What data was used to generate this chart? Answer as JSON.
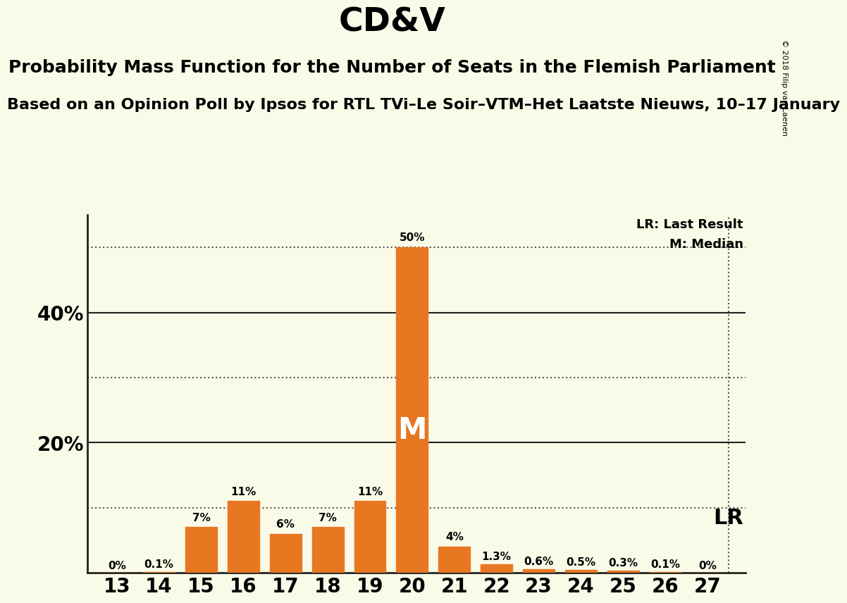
{
  "title": "CD&V",
  "subtitle": "Probability Mass Function for the Number of Seats in the Flemish Parliament",
  "subsubtitle": "Based on an Opinion Poll by Ipsos for RTL TVi–Le Soir–VTM–Het Laatste Nieuws, 10–17 January",
  "seats": [
    13,
    14,
    15,
    16,
    17,
    18,
    19,
    20,
    21,
    22,
    23,
    24,
    25,
    26,
    27
  ],
  "values": [
    0.0,
    0.1,
    7.0,
    11.0,
    6.0,
    7.0,
    11.0,
    50.0,
    4.0,
    1.3,
    0.6,
    0.5,
    0.3,
    0.1,
    0.0
  ],
  "bar_color": "#E87722",
  "background_color": "#FAFAE8",
  "bar_labels": [
    "0%",
    "0.1%",
    "7%",
    "11%",
    "6%",
    "7%",
    "11%",
    "50%",
    "4%",
    "1.3%",
    "0.6%",
    "0.5%",
    "0.3%",
    "0.1%",
    "0%"
  ],
  "median_seat": 20,
  "lr_seat": 27,
  "lr_label": "LR",
  "median_label": "M",
  "legend_lr": "LR: Last Result",
  "legend_m": "M: Median",
  "dotted_line_color": "#555555",
  "solid_line_color": "#222222",
  "axis_color": "#222222",
  "copyright_text": "© 2018 Filip van Laenen",
  "ylim": [
    0,
    55
  ],
  "title_fontsize": 34,
  "subtitle_fontsize": 18,
  "subsubtitle_fontsize": 16,
  "bar_label_fontsize": 11,
  "ytick_fontsize": 20,
  "xtick_fontsize": 20
}
